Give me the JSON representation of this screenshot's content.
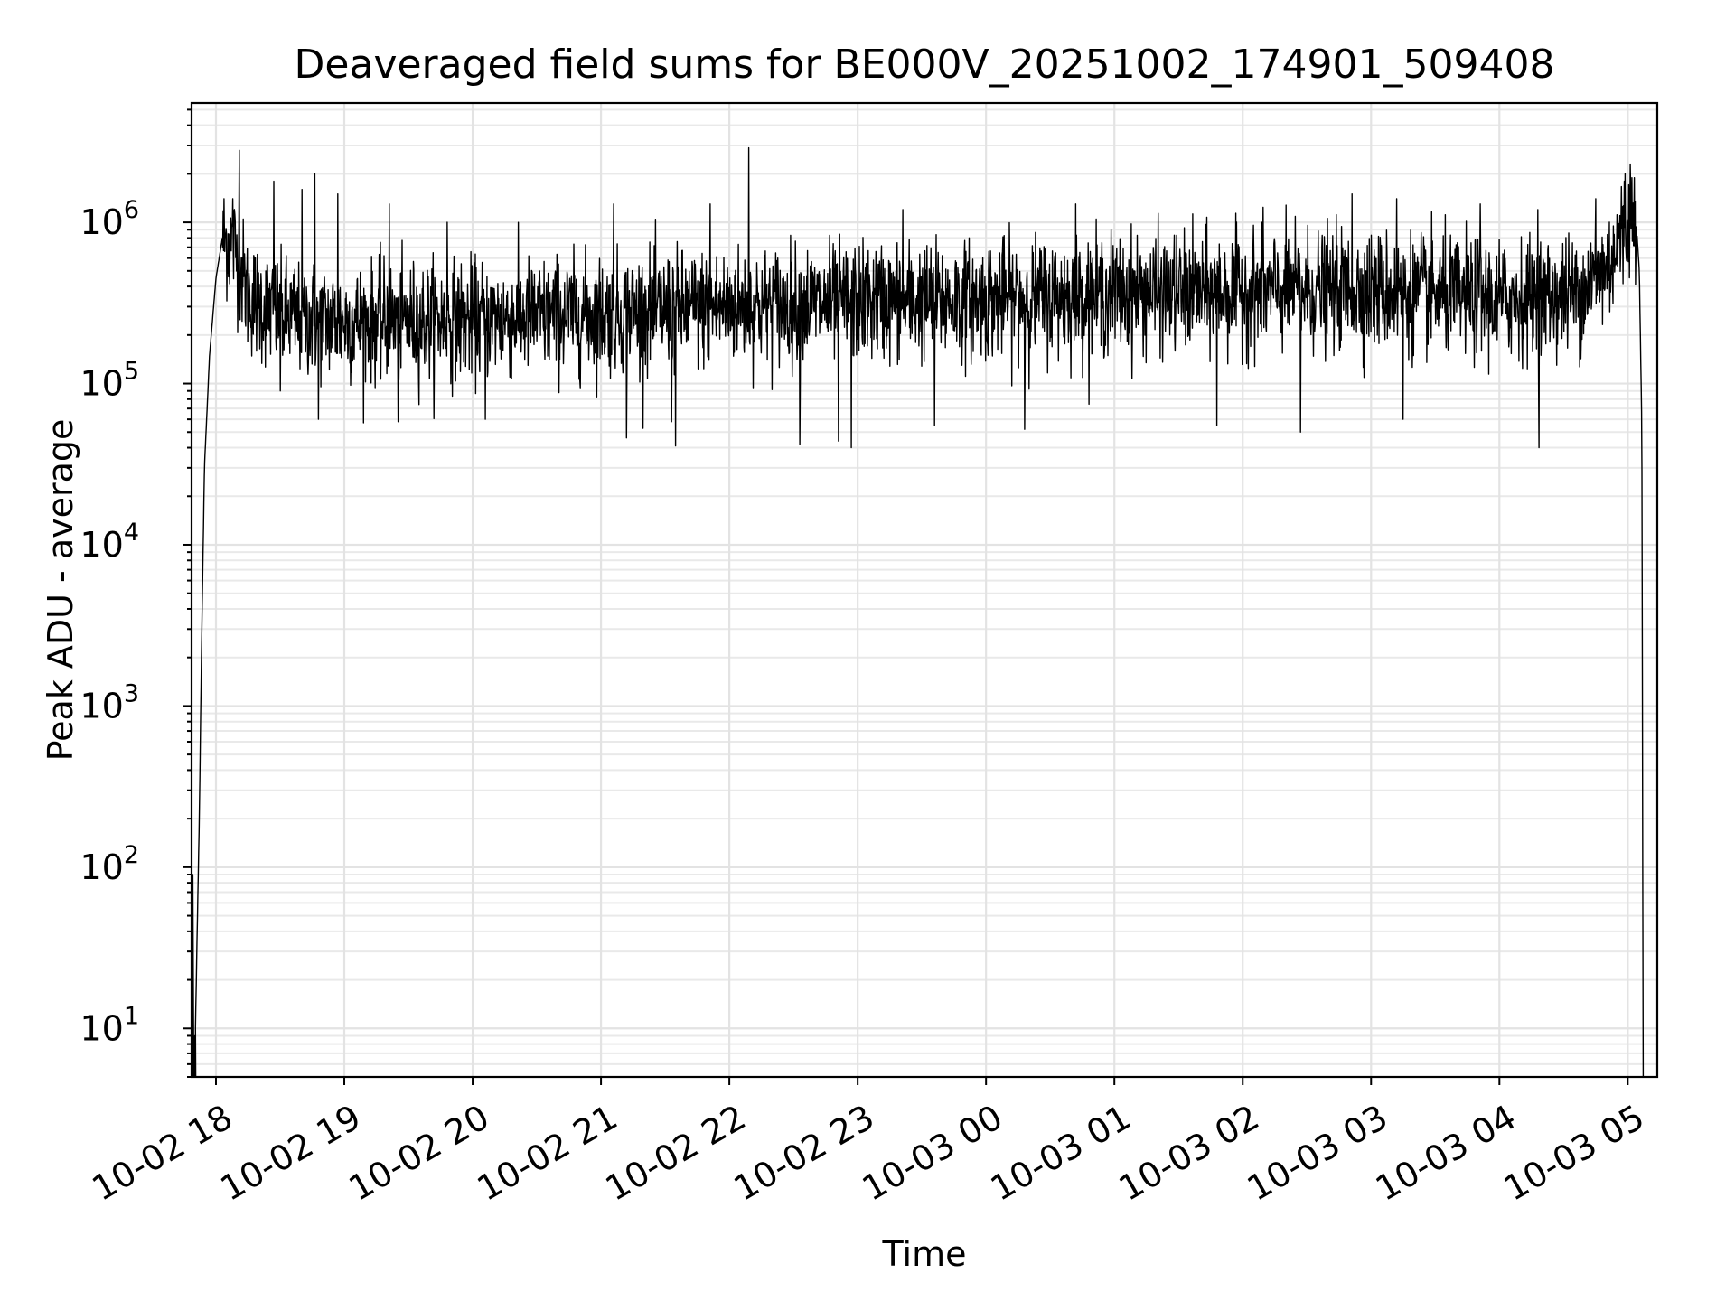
{
  "chart_data": {
    "type": "line",
    "title": "Deaveraged field sums for BE000V_20251002_174901_509408",
    "xlabel": "Time",
    "ylabel": "Peak ADU - average",
    "yscale": "log",
    "ylim": [
      5,
      5500000
    ],
    "xlim_hours": [
      17.81,
      29.23
    ],
    "grid": true,
    "x_ticks": [
      {
        "hour": 18,
        "label": "10-02 18"
      },
      {
        "hour": 19,
        "label": "10-02 19"
      },
      {
        "hour": 20,
        "label": "10-02 20"
      },
      {
        "hour": 21,
        "label": "10-02 21"
      },
      {
        "hour": 22,
        "label": "10-02 22"
      },
      {
        "hour": 23,
        "label": "10-02 23"
      },
      {
        "hour": 24,
        "label": "10-03 00"
      },
      {
        "hour": 25,
        "label": "10-03 01"
      },
      {
        "hour": 26,
        "label": "10-03 02"
      },
      {
        "hour": 27,
        "label": "10-03 03"
      },
      {
        "hour": 28,
        "label": "10-03 04"
      },
      {
        "hour": 29,
        "label": "10-03 05"
      }
    ],
    "y_ticks": [
      {
        "exp": 1,
        "base": "10",
        "sup": "1"
      },
      {
        "exp": 2,
        "base": "10",
        "sup": "2"
      },
      {
        "exp": 3,
        "base": "10",
        "sup": "3"
      },
      {
        "exp": 4,
        "base": "10",
        "sup": "4"
      },
      {
        "exp": 5,
        "base": "10",
        "sup": "5"
      },
      {
        "exp": 6,
        "base": "10",
        "sup": "6"
      }
    ],
    "series": [
      {
        "name": "Deaveraged field sum",
        "color": "#000000",
        "noise_decades": 0.18,
        "baseline_profile": [
          {
            "hour": 17.84,
            "value": 10
          },
          {
            "hour": 17.87,
            "value": 200
          },
          {
            "hour": 17.89,
            "value": 3000
          },
          {
            "hour": 17.91,
            "value": 30000
          },
          {
            "hour": 17.95,
            "value": 150000
          },
          {
            "hour": 18.0,
            "value": 450000
          },
          {
            "hour": 18.05,
            "value": 800000
          },
          {
            "hour": 18.15,
            "value": 700000
          },
          {
            "hour": 18.25,
            "value": 350000
          },
          {
            "hour": 18.5,
            "value": 260000
          },
          {
            "hour": 19.0,
            "value": 240000
          },
          {
            "hour": 20.0,
            "value": 250000
          },
          {
            "hour": 21.0,
            "value": 270000
          },
          {
            "hour": 22.0,
            "value": 300000
          },
          {
            "hour": 23.0,
            "value": 320000
          },
          {
            "hour": 24.0,
            "value": 330000
          },
          {
            "hour": 25.0,
            "value": 360000
          },
          {
            "hour": 26.0,
            "value": 370000
          },
          {
            "hour": 27.0,
            "value": 380000
          },
          {
            "hour": 28.0,
            "value": 330000
          },
          {
            "hour": 28.6,
            "value": 360000
          },
          {
            "hour": 28.85,
            "value": 550000
          },
          {
            "hour": 29.0,
            "value": 1000000
          },
          {
            "hour": 29.06,
            "value": 1200000
          },
          {
            "hour": 29.09,
            "value": 500000
          },
          {
            "hour": 29.11,
            "value": 50000
          },
          {
            "hour": 29.12,
            "value": 5
          }
        ],
        "spikes": [
          {
            "hour": 18.18,
            "value": 2800000
          },
          {
            "hour": 18.13,
            "value": 1400000
          },
          {
            "hour": 18.45,
            "value": 1800000
          },
          {
            "hour": 18.67,
            "value": 1600000
          },
          {
            "hour": 18.77,
            "value": 2000000
          },
          {
            "hour": 18.95,
            "value": 1500000
          },
          {
            "hour": 19.35,
            "value": 1300000
          },
          {
            "hour": 19.8,
            "value": 1000000
          },
          {
            "hour": 20.1,
            "value": 900000
          },
          {
            "hour": 21.1,
            "value": 1300000
          },
          {
            "hour": 21.85,
            "value": 1300000
          },
          {
            "hour": 22.15,
            "value": 2900000
          },
          {
            "hour": 23.35,
            "value": 1200000
          },
          {
            "hour": 24.7,
            "value": 1300000
          },
          {
            "hour": 26.15,
            "value": 1000000
          },
          {
            "hour": 26.85,
            "value": 1500000
          },
          {
            "hour": 27.2,
            "value": 1400000
          },
          {
            "hour": 27.85,
            "value": 1300000
          },
          {
            "hour": 28.3,
            "value": 1200000
          },
          {
            "hour": 28.75,
            "value": 1400000
          },
          {
            "hour": 28.98,
            "value": 2000000
          },
          {
            "hour": 29.02,
            "value": 2300000
          },
          {
            "hour": 18.5,
            "value": 90000
          },
          {
            "hour": 18.8,
            "value": 60000
          },
          {
            "hour": 19.42,
            "value": 58000
          },
          {
            "hour": 20.1,
            "value": 60000
          },
          {
            "hour": 21.2,
            "value": 46000
          },
          {
            "hour": 21.55,
            "value": 58000
          },
          {
            "hour": 21.58,
            "value": 41000
          },
          {
            "hour": 22.55,
            "value": 42000
          },
          {
            "hour": 22.85,
            "value": 44000
          },
          {
            "hour": 22.95,
            "value": 40000
          },
          {
            "hour": 23.6,
            "value": 55000
          },
          {
            "hour": 24.3,
            "value": 52000
          },
          {
            "hour": 25.8,
            "value": 55000
          },
          {
            "hour": 26.45,
            "value": 50000
          },
          {
            "hour": 27.25,
            "value": 60000
          },
          {
            "hour": 28.31,
            "value": 40000
          }
        ]
      }
    ],
    "start_artifacts": [
      {
        "hour": 17.82,
        "value": 90
      },
      {
        "hour": 17.835,
        "value": 9
      }
    ]
  }
}
